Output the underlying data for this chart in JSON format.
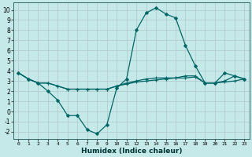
{
  "xlabel": "Humidex (Indice chaleur)",
  "background_color": "#c5e8e8",
  "grid_color": "#b0c8c8",
  "line_color": "#006666",
  "xlim": [
    -0.5,
    23.5
  ],
  "ylim": [
    -2.7,
    10.7
  ],
  "xticks": [
    0,
    1,
    2,
    3,
    4,
    5,
    6,
    7,
    8,
    9,
    10,
    11,
    12,
    13,
    14,
    15,
    16,
    17,
    18,
    19,
    20,
    21,
    22,
    23
  ],
  "yticks": [
    -2,
    -1,
    0,
    1,
    2,
    3,
    4,
    5,
    6,
    7,
    8,
    9,
    10
  ],
  "series": [
    {
      "x": [
        0,
        1,
        2,
        3,
        4,
        5,
        6,
        7,
        8,
        9,
        10,
        11,
        12,
        13,
        14,
        15,
        16,
        17,
        18,
        19,
        20,
        21,
        22,
        23
      ],
      "y": [
        3.8,
        3.2,
        2.8,
        2.0,
        1.1,
        -0.4,
        -0.4,
        -1.8,
        -2.2,
        -1.3,
        2.3,
        3.2,
        8.0,
        9.7,
        10.2,
        9.6,
        9.2,
        6.5,
        4.5,
        2.8,
        2.8,
        3.8,
        3.5,
        3.2
      ],
      "marker": "D",
      "markersize": 2.0
    },
    {
      "x": [
        0,
        1,
        2,
        3,
        4,
        5,
        6,
        7,
        8,
        9,
        10,
        11,
        12,
        13,
        14,
        15,
        16,
        17,
        18,
        19,
        20,
        21,
        22,
        23
      ],
      "y": [
        3.8,
        3.2,
        2.8,
        2.8,
        2.5,
        2.2,
        2.2,
        2.2,
        2.2,
        2.2,
        2.5,
        2.8,
        3.0,
        3.2,
        3.3,
        3.3,
        3.3,
        3.5,
        3.5,
        2.8,
        2.8,
        3.0,
        3.5,
        3.2
      ],
      "marker": "+",
      "markersize": 3.0
    },
    {
      "x": [
        0,
        1,
        2,
        3,
        4,
        5,
        6,
        7,
        8,
        9,
        10,
        11,
        12,
        13,
        14,
        15,
        16,
        17,
        18,
        19,
        20,
        21,
        22,
        23
      ],
      "y": [
        3.8,
        3.2,
        2.8,
        2.8,
        2.5,
        2.2,
        2.2,
        2.2,
        2.2,
        2.2,
        2.5,
        2.7,
        2.9,
        3.0,
        3.1,
        3.2,
        3.3,
        3.3,
        3.4,
        2.8,
        2.8,
        2.9,
        3.0,
        3.2
      ],
      "marker": "+",
      "markersize": 2.5
    }
  ]
}
